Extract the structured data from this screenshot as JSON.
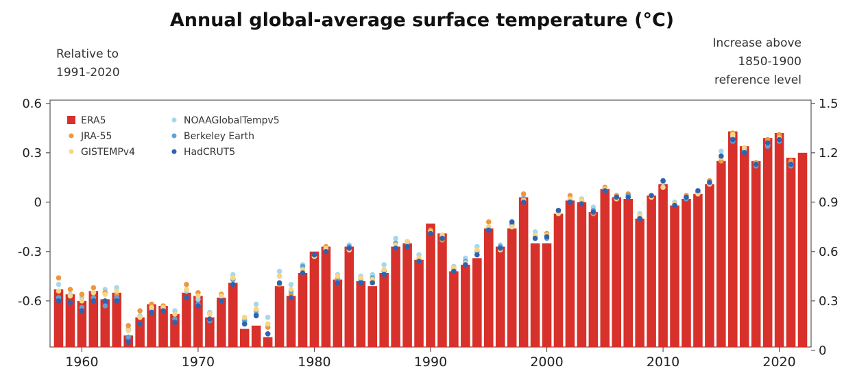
{
  "title": "Annual global-average surface temperature (°C)",
  "left_note": [
    "Relative to",
    "1991-2020"
  ],
  "right_note": [
    "Increase above",
    "1850-1900",
    "reference level"
  ],
  "chart_data": {
    "type": "bar",
    "years": [
      1958,
      1959,
      1960,
      1961,
      1962,
      1963,
      1964,
      1965,
      1966,
      1967,
      1968,
      1969,
      1970,
      1971,
      1972,
      1973,
      1974,
      1975,
      1976,
      1977,
      1978,
      1979,
      1980,
      1981,
      1982,
      1983,
      1984,
      1985,
      1986,
      1987,
      1988,
      1989,
      1990,
      1991,
      1992,
      1993,
      1994,
      1995,
      1996,
      1997,
      1998,
      1999,
      2000,
      2001,
      2002,
      2003,
      2004,
      2005,
      2006,
      2007,
      2008,
      2009,
      2010,
      2011,
      2012,
      2013,
      2014,
      2015,
      2016,
      2017,
      2018,
      2019,
      2020,
      2021,
      2022
    ],
    "y_left_label": "Relative to 1991-2020",
    "y_right_label": "Increase above 1850-1900 reference level",
    "ylim_left": [
      -0.88,
      0.62
    ],
    "ylim_right": [
      0.02,
      1.52
    ],
    "left_ticks": [
      0.6,
      0.3,
      0,
      -0.3,
      -0.6
    ],
    "left_tick_labels": [
      "0.6",
      "0.3",
      "0",
      "-0.3",
      "-0.6"
    ],
    "right_ticks": [
      1.5,
      1.2,
      0.9,
      0.6,
      0.3,
      0
    ],
    "right_tick_labels": [
      "1.5",
      "1.2",
      "0.9",
      "0.6",
      "0.3",
      "0"
    ],
    "x_ticks": [
      1960,
      1970,
      1980,
      1990,
      2000,
      2010,
      2020
    ],
    "x_tick_labels": [
      "1960",
      "1970",
      "1980",
      "1990",
      "2000",
      "2010",
      "2020"
    ],
    "bar_series": {
      "name": "ERA5",
      "color": "#d8302a",
      "values": [
        -0.53,
        -0.56,
        -0.6,
        -0.54,
        -0.59,
        -0.55,
        -0.81,
        -0.7,
        -0.62,
        -0.63,
        -0.68,
        -0.55,
        -0.57,
        -0.7,
        -0.58,
        -0.49,
        -0.77,
        -0.75,
        -0.82,
        -0.51,
        -0.57,
        -0.43,
        -0.3,
        -0.27,
        -0.47,
        -0.27,
        -0.48,
        -0.51,
        -0.43,
        -0.27,
        -0.25,
        -0.35,
        -0.13,
        -0.19,
        -0.42,
        -0.38,
        -0.34,
        -0.16,
        -0.27,
        -0.16,
        0.03,
        -0.25,
        -0.25,
        -0.07,
        0.01,
        0.0,
        -0.06,
        0.08,
        0.03,
        0.02,
        -0.1,
        0.04,
        0.11,
        -0.02,
        0.02,
        0.05,
        0.11,
        0.25,
        0.43,
        0.34,
        0.25,
        0.39,
        0.42,
        0.27,
        0.3
      ]
    },
    "dot_series": [
      {
        "name": "NOAAGlobalTempv5",
        "color": "#a6d8ec",
        "values": [
          -0.5,
          -0.56,
          -0.58,
          -0.55,
          -0.53,
          -0.52,
          -0.77,
          -0.69,
          -0.65,
          -0.64,
          -0.66,
          -0.54,
          -0.59,
          -0.67,
          -0.56,
          -0.44,
          -0.7,
          -0.62,
          -0.7,
          -0.42,
          -0.5,
          -0.38,
          -0.33,
          -0.29,
          -0.44,
          -0.26,
          -0.45,
          -0.44,
          -0.38,
          -0.22,
          -0.24,
          -0.32,
          -0.17,
          -0.21,
          -0.39,
          -0.34,
          -0.27,
          -0.15,
          -0.26,
          -0.13,
          0.03,
          -0.18,
          -0.2,
          -0.06,
          0.02,
          0.02,
          -0.03,
          0.08,
          0.04,
          0.04,
          -0.07,
          0.04,
          0.12,
          0.0,
          0.04,
          0.06,
          0.12,
          0.31,
          0.4,
          0.32,
          0.24,
          0.35,
          0.39,
          0.24,
          null
        ]
      },
      {
        "name": "JRA-55",
        "color": "#f0963c",
        "values": [
          -0.46,
          -0.53,
          -0.56,
          -0.52,
          -0.55,
          -0.56,
          -0.75,
          -0.66,
          -0.62,
          -0.63,
          -0.68,
          -0.5,
          -0.55,
          -0.68,
          -0.56,
          -0.47,
          -0.72,
          -0.66,
          -0.76,
          -0.5,
          -0.56,
          -0.43,
          -0.32,
          -0.27,
          -0.46,
          -0.29,
          -0.47,
          -0.48,
          -0.42,
          -0.28,
          -0.24,
          -0.36,
          -0.17,
          -0.23,
          -0.4,
          -0.37,
          -0.3,
          -0.12,
          -0.28,
          -0.14,
          0.05,
          -0.21,
          -0.19,
          -0.05,
          0.04,
          0.0,
          -0.07,
          0.09,
          0.04,
          0.05,
          -0.08,
          0.03,
          0.09,
          -0.01,
          0.04,
          0.06,
          0.13,
          0.25,
          0.42,
          0.32,
          0.24,
          0.38,
          0.41,
          0.25,
          null
        ]
      },
      {
        "name": "Berkeley Earth",
        "color": "#5ea3d6",
        "values": [
          -0.58,
          -0.61,
          -0.64,
          -0.58,
          -0.63,
          -0.58,
          -0.82,
          -0.74,
          -0.66,
          -0.65,
          -0.71,
          -0.58,
          -0.62,
          -0.72,
          -0.6,
          -0.47,
          -0.72,
          -0.68,
          -0.74,
          -0.45,
          -0.54,
          -0.39,
          -0.33,
          -0.28,
          -0.48,
          -0.27,
          -0.48,
          -0.46,
          -0.42,
          -0.25,
          -0.25,
          -0.35,
          -0.18,
          -0.22,
          -0.41,
          -0.36,
          -0.3,
          -0.16,
          -0.27,
          -0.13,
          0.02,
          -0.2,
          -0.22,
          -0.06,
          0.01,
          0.01,
          -0.05,
          0.07,
          0.03,
          0.04,
          -0.09,
          0.04,
          0.13,
          -0.01,
          0.02,
          0.06,
          0.11,
          0.27,
          0.37,
          0.31,
          0.22,
          0.34,
          0.37,
          0.22,
          null
        ]
      },
      {
        "name": "GISTEMPv4",
        "color": "#f8d684",
        "values": [
          -0.54,
          -0.57,
          -0.6,
          -0.55,
          -0.56,
          -0.54,
          -0.78,
          -0.7,
          -0.64,
          -0.64,
          -0.68,
          -0.53,
          -0.57,
          -0.68,
          -0.57,
          -0.46,
          -0.7,
          -0.65,
          -0.74,
          -0.45,
          -0.53,
          -0.41,
          -0.33,
          -0.28,
          -0.45,
          -0.29,
          -0.46,
          -0.47,
          -0.41,
          -0.26,
          -0.24,
          -0.34,
          -0.18,
          -0.2,
          -0.4,
          -0.37,
          -0.29,
          -0.15,
          -0.29,
          -0.15,
          0.01,
          -0.2,
          -0.2,
          -0.07,
          0.02,
          0.01,
          -0.06,
          0.08,
          0.02,
          0.03,
          -0.08,
          0.03,
          0.09,
          -0.01,
          0.03,
          0.05,
          0.11,
          0.27,
          0.41,
          0.33,
          0.23,
          0.36,
          0.39,
          0.23,
          null
        ]
      },
      {
        "name": "HadCRUT5",
        "color": "#2f62b0",
        "values": [
          -0.6,
          -0.61,
          -0.66,
          -0.6,
          -0.6,
          -0.6,
          -0.85,
          -0.74,
          -0.67,
          -0.66,
          -0.73,
          -0.58,
          -0.63,
          -0.71,
          -0.6,
          -0.5,
          -0.74,
          -0.69,
          -0.8,
          -0.49,
          -0.58,
          -0.43,
          -0.32,
          -0.3,
          -0.49,
          -0.28,
          -0.49,
          -0.49,
          -0.44,
          -0.28,
          -0.27,
          -0.36,
          -0.19,
          -0.22,
          -0.42,
          -0.38,
          -0.32,
          -0.17,
          -0.28,
          -0.12,
          0.0,
          -0.22,
          -0.21,
          -0.05,
          0.0,
          -0.01,
          -0.06,
          0.07,
          0.03,
          0.03,
          -0.1,
          0.04,
          0.13,
          -0.02,
          0.03,
          0.07,
          0.12,
          0.28,
          0.38,
          0.3,
          0.23,
          0.36,
          0.38,
          0.23,
          null
        ]
      }
    ],
    "legend_placement": "top-left"
  }
}
